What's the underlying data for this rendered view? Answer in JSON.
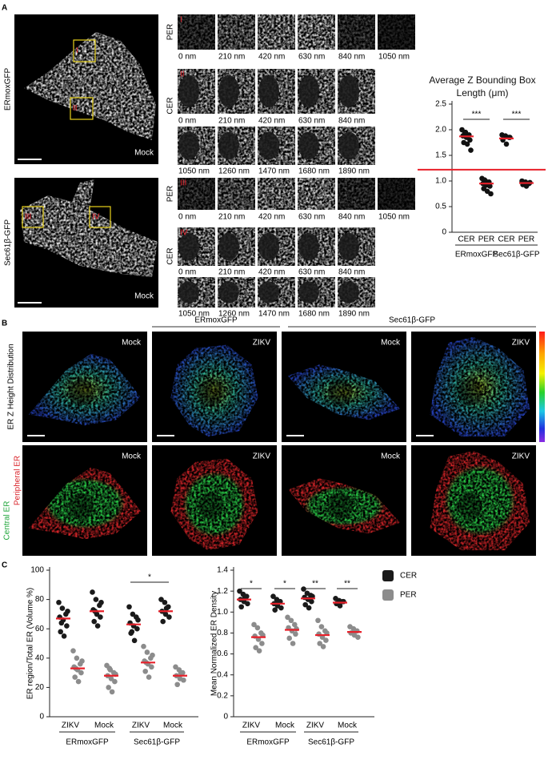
{
  "panel_labels": [
    "A",
    "B",
    "C"
  ],
  "panel_a": {
    "cells": [
      {
        "name": "ERmoxGFP",
        "condition": "Mock",
        "rois": [
          "I",
          "II"
        ]
      },
      {
        "name": "Sec61β-GFP",
        "condition": "Mock",
        "rois": [
          "III",
          "IV"
        ]
      }
    ],
    "montages": [
      {
        "per_label": "PER",
        "cer_label": "CER",
        "per_depths": [
          "0 nm",
          "210 nm",
          "420 nm",
          "630 nm",
          "840 nm",
          "1050 nm"
        ],
        "cer_depths": [
          "0 nm",
          "210 nm",
          "420 nm",
          "630 nm",
          "840 nm",
          "1050 nm",
          "1260 nm",
          "1470 nm",
          "1680 nm",
          "1890 nm"
        ]
      },
      {
        "per_label": "PER",
        "cer_label": "CER",
        "per_depths": [
          "0 nm",
          "210 nm",
          "420 nm",
          "630 nm",
          "840 nm",
          "1050 nm"
        ],
        "cer_depths": [
          "0 nm",
          "210 nm",
          "420 nm",
          "630 nm",
          "840 nm",
          "1050 nm",
          "1260 nm",
          "1470 nm",
          "1680 nm",
          "1890 nm"
        ]
      }
    ]
  },
  "panel_b": {
    "groups": [
      "ERmoxGFP",
      "Sec61β-GFP"
    ],
    "row_labels": {
      "height": "ER Z Height Distribution",
      "central": "Central ER",
      "peripheral": "Peripheral ER"
    },
    "conditions": [
      [
        "Mock",
        "ZIKV",
        "Mock",
        "ZIKV"
      ],
      [
        "Mock",
        "ZIKV",
        "Mock",
        "ZIKV"
      ]
    ]
  },
  "chart_data": [
    {
      "type": "dot",
      "title": "Average Z Bounding Box Length (μm)",
      "categories": [
        "CER",
        "PER",
        "CER",
        "PER"
      ],
      "groups": [
        "ERmoxGFP",
        "Sec61β-GFP"
      ],
      "ylim": [
        0,
        2.5
      ],
      "yticks": [
        0,
        0.5,
        {
          "value": 1,
          "label": "1.0"
        },
        1.5,
        {
          "value": 2,
          "label": "2.0"
        },
        2.5
      ],
      "reference_line": {
        "value": 1.22,
        "color": "#e8202a"
      },
      "significance": [
        "***",
        "***"
      ],
      "series": [
        {
          "color": "#111111",
          "mean_color": "#e8202a",
          "points": [
            [
              2.0,
              1.95,
              1.9,
              1.88,
              1.85,
              1.8,
              1.75,
              1.72,
              1.6,
              1.93
            ],
            [
              1.05,
              1.0,
              0.98,
              0.95,
              0.92,
              0.9,
              0.85,
              0.8,
              0.75,
              1.02
            ],
            [
              1.9,
              1.88,
              1.85,
              1.8,
              1.72,
              1.85
            ],
            [
              1.0,
              0.98,
              0.95,
              0.93,
              0.9,
              0.97
            ]
          ],
          "means": [
            1.87,
            0.95,
            1.83,
            0.96
          ]
        }
      ]
    },
    {
      "type": "dot",
      "ylabel": "ER region/Total ER (Volume %)",
      "categories": [
        "ZIKV",
        "Mock",
        "ZIKV",
        "Mock"
      ],
      "groups": [
        "ERmoxGFP",
        "Sec61β-GFP"
      ],
      "ylim": [
        0,
        100
      ],
      "yticks": [
        0,
        20,
        40,
        60,
        80,
        100
      ],
      "significance": [
        "*"
      ],
      "series": [
        {
          "name": "CER",
          "color": "#1a1a1a",
          "mean_color": "#e8202a",
          "points": [
            [
              78,
              74,
              70,
              68,
              66,
              62,
              58,
              55,
              72,
              64
            ],
            [
              85,
              80,
              76,
              73,
              70,
              68,
              65,
              62,
              78,
              72
            ],
            [
              75,
              70,
              68,
              64,
              62,
              60,
              57,
              52,
              66,
              58
            ],
            [
              80,
              78,
              75,
              72,
              70,
              68,
              65,
              74
            ]
          ],
          "means": [
            67,
            72,
            63,
            72
          ]
        },
        {
          "name": "PER",
          "color": "#8c8c8c",
          "mean_color": "#e8202a",
          "points": [
            [
              45,
              40,
              36,
              34,
              32,
              30,
              27,
              24,
              38,
              33
            ],
            [
              35,
              32,
              30,
              28,
              26,
              24,
              20,
              17,
              29,
              33
            ],
            [
              48,
              44,
              40,
              38,
              36,
              34,
              31,
              27,
              42,
              37
            ],
            [
              34,
              32,
              30,
              28,
              26,
              25,
              22,
              30
            ]
          ],
          "means": [
            33,
            28,
            37,
            28
          ]
        }
      ]
    },
    {
      "type": "dot",
      "ylabel": "Mean Normalized ER Density",
      "categories": [
        "ZIKV",
        "Mock",
        "ZIKV",
        "Mock"
      ],
      "groups": [
        "ERmoxGFP",
        "Sec61β-GFP"
      ],
      "ylim": [
        0,
        1.4
      ],
      "yticks": [
        0,
        0.2,
        0.4,
        0.6,
        0.8,
        {
          "value": 1,
          "label": "1.0"
        },
        1.2,
        1.4
      ],
      "significance": [
        "*",
        "*",
        "**",
        "**"
      ],
      "legend": "right",
      "series": [
        {
          "name": "CER",
          "color": "#1a1a1a",
          "mean_color": "#e8202a",
          "points": [
            [
              1.2,
              1.17,
              1.15,
              1.12,
              1.1,
              1.08,
              1.05,
              1.14
            ],
            [
              1.15,
              1.12,
              1.1,
              1.08,
              1.06,
              1.04,
              1.02,
              1.09
            ],
            [
              1.22,
              1.18,
              1.16,
              1.14,
              1.12,
              1.1,
              1.07,
              1.04,
              1.15
            ],
            [
              1.13,
              1.11,
              1.1,
              1.08,
              1.06,
              1.1
            ]
          ],
          "means": [
            1.12,
            1.08,
            1.13,
            1.09
          ]
        },
        {
          "name": "PER",
          "color": "#8c8c8c",
          "mean_color": "#e8202a",
          "points": [
            [
              0.88,
              0.85,
              0.8,
              0.77,
              0.74,
              0.7,
              0.66,
              0.63,
              0.78
            ],
            [
              0.95,
              0.92,
              0.88,
              0.85,
              0.82,
              0.79,
              0.75,
              0.7,
              0.84
            ],
            [
              0.92,
              0.86,
              0.82,
              0.79,
              0.76,
              0.73,
              0.7,
              0.67,
              0.8
            ],
            [
              0.86,
              0.84,
              0.82,
              0.8,
              0.78,
              0.76
            ]
          ],
          "means": [
            0.76,
            0.83,
            0.78,
            0.81
          ]
        }
      ]
    }
  ]
}
